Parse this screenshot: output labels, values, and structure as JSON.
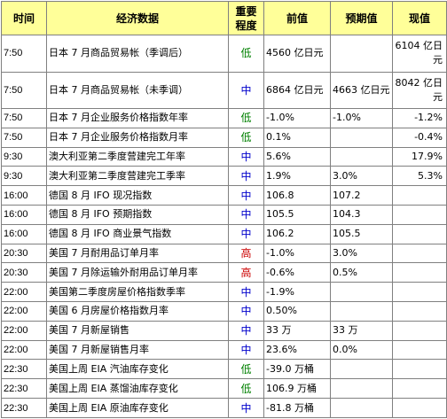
{
  "header": {
    "time": "时间",
    "event": "经济数据",
    "importance": "重要程度",
    "previous": "前值",
    "forecast": "预期值",
    "actual": "现值"
  },
  "colors": {
    "low": "#008000",
    "mid": "#0000cc",
    "high": "#cc0000",
    "header_bg": "#ffff99",
    "border": "#808080"
  },
  "rows": [
    {
      "time": "7:50",
      "event": "日本 7 月商品贸易帐（季调后）",
      "importance": "低",
      "level": "low",
      "previous": "4560 亿日元",
      "forecast": "",
      "actual": "6104 亿日元",
      "tall": true
    },
    {
      "time": "7:50",
      "event": "日本 7 月商品贸易帐（未季调）",
      "importance": "中",
      "level": "mid",
      "previous": "6864 亿日元",
      "forecast": "4663 亿日元",
      "actual": "8042 亿日元",
      "tall": true
    },
    {
      "time": "7:50",
      "event": "日本 7 月企业服务价格指数年率",
      "importance": "低",
      "level": "low",
      "previous": "-1.0%",
      "forecast": "-1.0%",
      "actual": "-1.2%"
    },
    {
      "time": "7:50",
      "event": "日本 7 月企业服务价格指数月率",
      "importance": "低",
      "level": "low",
      "previous": "0.1%",
      "forecast": "",
      "actual": "-0.4%"
    },
    {
      "time": "9:30",
      "event": "澳大利亚第二季度营建完工年率",
      "importance": "中",
      "level": "mid",
      "previous": "5.6%",
      "forecast": "",
      "actual": "17.9%"
    },
    {
      "time": "9:30",
      "event": "澳大利亚第二季度营建完工季率",
      "importance": "中",
      "level": "mid",
      "previous": "1.9%",
      "forecast": "3.0%",
      "actual": "5.3%"
    },
    {
      "time": "16:00",
      "event": "德国 8 月 IFO 现况指数",
      "importance": "中",
      "level": "mid",
      "previous": "106.8",
      "forecast": "107.2",
      "actual": ""
    },
    {
      "time": "16:00",
      "event": "德国 8 月 IFO 预期指数",
      "importance": "中",
      "level": "mid",
      "previous": "105.5",
      "forecast": "104.3",
      "actual": ""
    },
    {
      "time": "16:00",
      "event": "德国 8 月 IFO 商业景气指数",
      "importance": "中",
      "level": "mid",
      "previous": "106.2",
      "forecast": "105.5",
      "actual": ""
    },
    {
      "time": "20:30",
      "event": "美国 7 月耐用品订单月率",
      "importance": "高",
      "level": "high",
      "previous": "-1.0%",
      "forecast": "3.0%",
      "actual": ""
    },
    {
      "time": "20:30",
      "event": "美国 7 月除运输外耐用品订单月率",
      "importance": "高",
      "level": "high",
      "previous": "-0.6%",
      "forecast": "0.5%",
      "actual": ""
    },
    {
      "time": "22:00",
      "event": "美国第二季度房屋价格指数季率",
      "importance": "中",
      "level": "mid",
      "previous": "-1.9%",
      "forecast": "",
      "actual": ""
    },
    {
      "time": "22:00",
      "event": "美国 6 月房屋价格指数月率",
      "importance": "中",
      "level": "mid",
      "previous": "0.50%",
      "forecast": "",
      "actual": ""
    },
    {
      "time": "22:00",
      "event": "美国 7 月新屋销售",
      "importance": "中",
      "level": "mid",
      "previous": "33 万",
      "forecast": "33 万",
      "actual": ""
    },
    {
      "time": "22:00",
      "event": "美国 7 月新屋销售月率",
      "importance": "中",
      "level": "mid",
      "previous": "23.6%",
      "forecast": "0.0%",
      "actual": ""
    },
    {
      "time": "22:30",
      "event": "美国上周 EIA 汽油库存变化",
      "importance": "低",
      "level": "low",
      "previous": "-39.0 万桶",
      "forecast": "",
      "actual": ""
    },
    {
      "time": "22:30",
      "event": "美国上周 EIA 蒸馏油库存变化",
      "importance": "低",
      "level": "low",
      "previous": "106.9 万桶",
      "forecast": "",
      "actual": ""
    },
    {
      "time": "22:30",
      "event": "美国上周 EIA 原油库存变化",
      "importance": "中",
      "level": "mid",
      "previous": "-81.8 万桶",
      "forecast": "",
      "actual": ""
    }
  ]
}
